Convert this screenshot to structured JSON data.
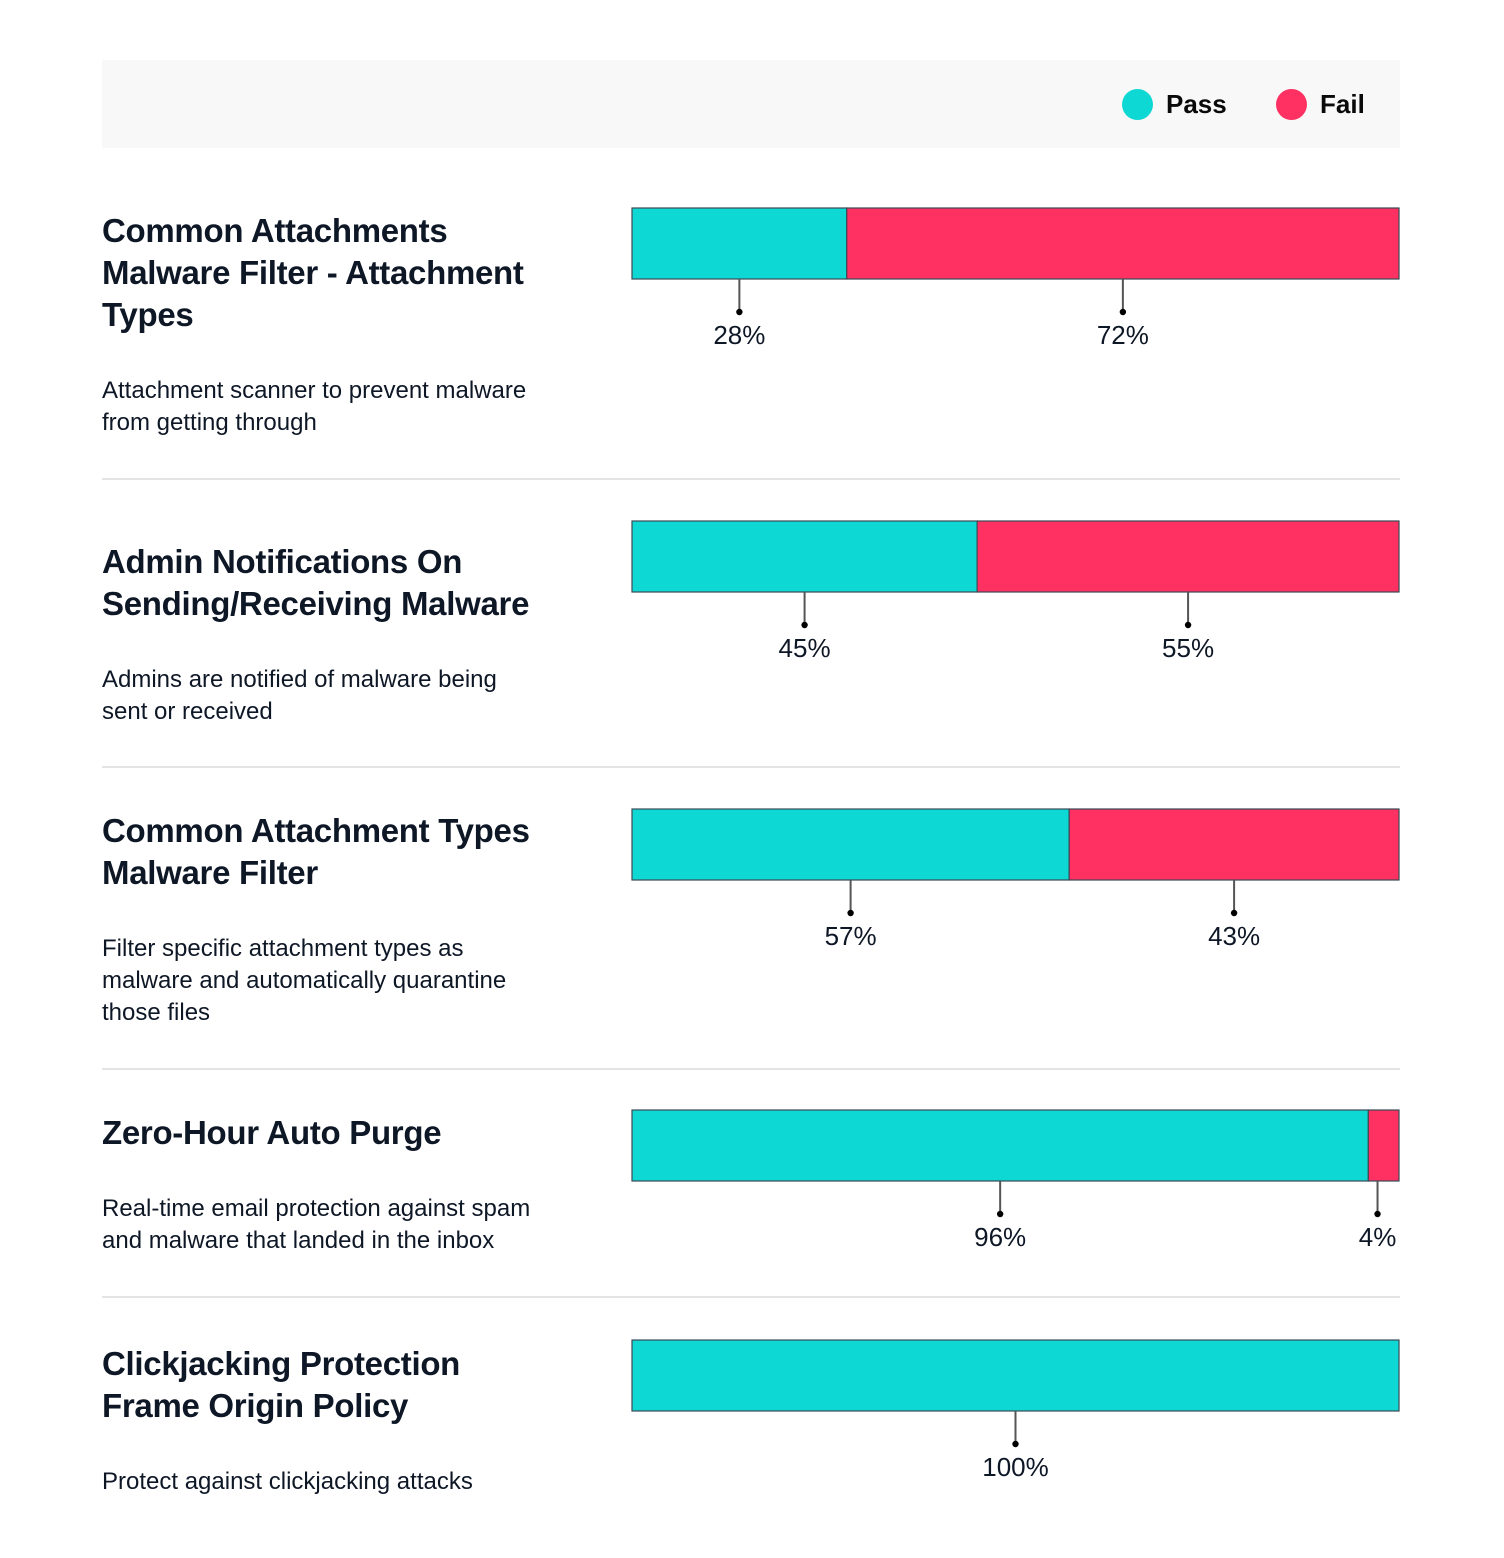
{
  "colors": {
    "pass": "#0dd8d3",
    "fail": "#ff3062",
    "legend_bg": "#f8f8f8",
    "text": "#0e1726"
  },
  "legend": [
    {
      "label": "Pass",
      "color": "#0dd8d3"
    },
    {
      "label": "Fail",
      "color": "#ff3062"
    }
  ],
  "rows": [
    {
      "title_lines": [
        "Common Attachments",
        "Malware Filter - Attachment",
        "Types"
      ],
      "desc_lines": [
        "Attachment scanner to prevent malware",
        "from getting through"
      ]
    },
    {
      "title_lines": [
        "Admin Notifications On",
        "Sending/Receiving Malware"
      ],
      "desc_lines": [
        "Admins are notified of malware being",
        "sent or received"
      ]
    },
    {
      "title_lines": [
        "Common Attachment Types",
        "Malware Filter"
      ],
      "desc_lines": [
        "Filter specific attachment types as",
        "malware and automatically quarantine",
        "those files"
      ]
    },
    {
      "title_lines": [
        "Zero-Hour Auto Purge"
      ],
      "desc_lines": [
        "Real-time email protection against spam",
        "and malware that landed in the inbox"
      ]
    },
    {
      "title_lines": [
        "Clickjacking Protection",
        "Frame Origin Policy"
      ],
      "desc_lines": [
        "Protect against clickjacking attacks"
      ]
    }
  ],
  "chart_data": {
    "type": "bar",
    "orientation": "horizontal-stacked-100",
    "categories": [
      "Common Attachments Malware Filter - Attachment Types",
      "Admin Notifications On Sending/Receiving Malware",
      "Common Attachment Types Malware Filter",
      "Zero-Hour Auto Purge",
      "Clickjacking Protection Frame Origin Policy"
    ],
    "series": [
      {
        "name": "Pass",
        "values": [
          28,
          45,
          57,
          96,
          100
        ],
        "labels": [
          "28%",
          "45%",
          "57%",
          "96%",
          "100%"
        ]
      },
      {
        "name": "Fail",
        "values": [
          72,
          55,
          43,
          4,
          0
        ],
        "labels": [
          "72%",
          "55%",
          "43%",
          "4%",
          ""
        ]
      }
    ],
    "xlim": [
      0,
      100
    ],
    "legend_position": "top-right",
    "grid": false
  }
}
